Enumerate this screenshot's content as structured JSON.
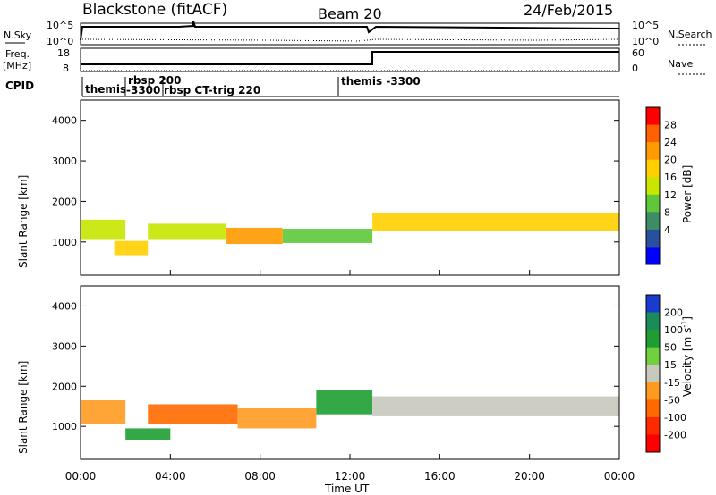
{
  "header": {
    "station": "Blackstone (fitACF)",
    "beam": "Beam 20",
    "date": "24/Feb/2015"
  },
  "nsky_panel": {
    "left_label": "N.Sky",
    "left_ticks": [
      "10^5",
      "10^0"
    ],
    "right_ticks": [
      "10^5",
      "10^0"
    ],
    "right_label": "N.Search"
  },
  "freq_panel": {
    "left_label_1": "Freq.",
    "left_label_2": "[MHz]",
    "left_ticks": [
      "18",
      "8"
    ],
    "right_ticks": [
      "60",
      "0"
    ],
    "right_label": "Nave"
  },
  "cpid_panel": {
    "label": "CPID",
    "programs": [
      "themis",
      "rbsp 200",
      "-3300",
      "rbsp CT-trig 220",
      "themis -3300"
    ]
  },
  "power_colorbar": {
    "label": "Power [dB]",
    "ticks": [
      "28",
      "24",
      "20",
      "16",
      "12",
      "8",
      "4"
    ],
    "colors": [
      "#ff0000",
      "#ff6000",
      "#ff9a00",
      "#ffcf00",
      "#c8e600",
      "#5ec83a",
      "#3c8c64",
      "#28509c",
      "#0000ff"
    ]
  },
  "velocity_colorbar": {
    "label_1": "Velocity [m s",
    "label_exp": "-1",
    "label_2": "]",
    "ticks": [
      "200",
      "100",
      "50",
      "15",
      "-15",
      "-50",
      "-100",
      "-200"
    ],
    "colors": [
      "#1a3ccc",
      "#1a8c5a",
      "#1e9e32",
      "#70d040",
      "#c8c8bc",
      "#ff9a20",
      "#ff6a00",
      "#ff2a00",
      "#ff0000"
    ]
  },
  "chart_data": {
    "type": "heatmap",
    "xlabel": "Time UT",
    "ylabel": "Slant Range [km]",
    "x_ticks": [
      "00:00",
      "04:00",
      "08:00",
      "12:00",
      "16:00",
      "20:00",
      "00:00"
    ],
    "y_ticks": [
      "1000",
      "2000",
      "3000",
      "4000"
    ],
    "xlim_hours": [
      0,
      24
    ],
    "ylim_km": [
      180,
      4500
    ],
    "panels": [
      {
        "name": "Power",
        "variable": "power_dB",
        "bands": [
          {
            "t_start": 0.0,
            "t_end": 2.0,
            "range_center_km": 1300,
            "thickness_km": 500,
            "value": 16
          },
          {
            "t_start": 1.5,
            "t_end": 3.0,
            "range_center_km": 850,
            "thickness_km": 350,
            "value": 20
          },
          {
            "t_start": 3.0,
            "t_end": 6.5,
            "range_center_km": 1250,
            "thickness_km": 400,
            "value": 18
          },
          {
            "t_start": 6.5,
            "t_end": 9.0,
            "range_center_km": 1150,
            "thickness_km": 400,
            "value": 24
          },
          {
            "t_start": 9.0,
            "t_end": 13.0,
            "range_center_km": 1150,
            "thickness_km": 350,
            "value": 14
          },
          {
            "t_start": 13.0,
            "t_end": 24.0,
            "range_center_km": 1500,
            "thickness_km": 450,
            "value": 20
          }
        ]
      },
      {
        "name": "Velocity",
        "variable": "velocity_m_s",
        "bands": [
          {
            "t_start": 0.0,
            "t_end": 2.0,
            "range_center_km": 1350,
            "thickness_km": 600,
            "value": -50
          },
          {
            "t_start": 2.0,
            "t_end": 4.0,
            "range_center_km": 800,
            "thickness_km": 300,
            "value": 50
          },
          {
            "t_start": 3.0,
            "t_end": 7.0,
            "range_center_km": 1300,
            "thickness_km": 500,
            "value": -100
          },
          {
            "t_start": 7.0,
            "t_end": 10.5,
            "range_center_km": 1200,
            "thickness_km": 500,
            "value": -50
          },
          {
            "t_start": 10.5,
            "t_end": 13.0,
            "range_center_km": 1600,
            "thickness_km": 600,
            "value": 50
          },
          {
            "t_start": 13.0,
            "t_end": 24.0,
            "range_center_km": 1500,
            "thickness_km": 500,
            "value": 0
          }
        ]
      }
    ]
  }
}
